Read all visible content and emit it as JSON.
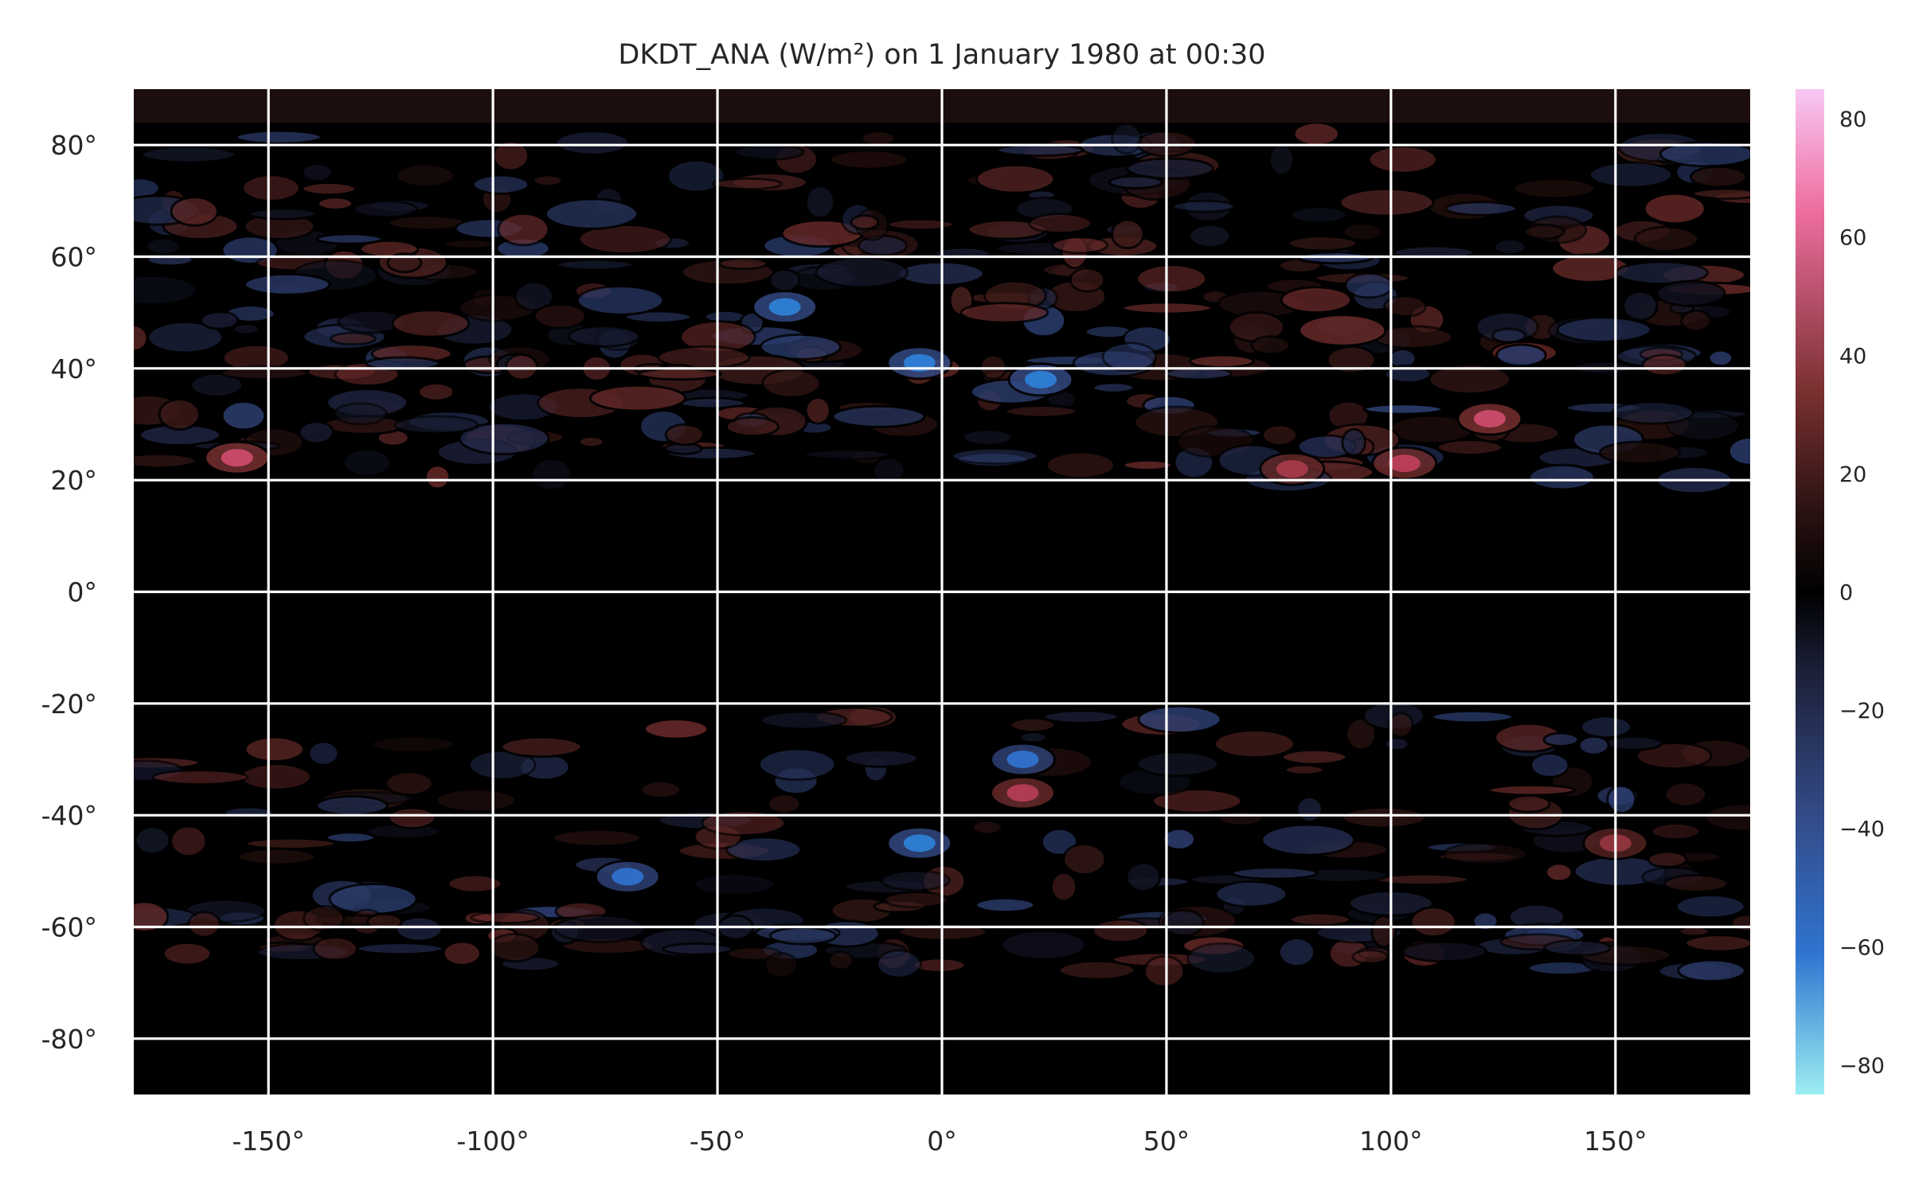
{
  "chart_data": {
    "type": "heatmap",
    "title": "DKDT_ANA (W/m²) on 1 January 1980 at 00:30",
    "xlim": [
      -180,
      180
    ],
    "ylim": [
      -90,
      90
    ],
    "x_ticks": [
      -150,
      -100,
      -50,
      0,
      50,
      100,
      150
    ],
    "y_ticks": [
      80,
      60,
      40,
      20,
      0,
      -20,
      -40,
      -60,
      -80
    ],
    "x_tick_labels": [
      "-150°",
      "-100°",
      "-50°",
      "0°",
      "50°",
      "100°",
      "150°"
    ],
    "y_tick_labels": [
      "80°",
      "60°",
      "40°",
      "20°",
      "0°",
      "-20°",
      "-40°",
      "-60°",
      "-80°"
    ],
    "grid": true,
    "colorbar": {
      "range": [
        -85,
        85
      ],
      "ticks": [
        80,
        60,
        40,
        20,
        0,
        -20,
        -40,
        -60,
        -80
      ],
      "tick_labels": [
        "80",
        "60",
        "40",
        "20",
        "0",
        "−20",
        "−40",
        "−60",
        "−80"
      ],
      "placement": "right"
    },
    "colormap": {
      "zero": "#000000",
      "positive": [
        "#000000",
        "#3a1a18",
        "#7a3030",
        "#c0405a",
        "#ee6ea0",
        "#f8c8f4"
      ],
      "negative": [
        "#000000",
        "#1c2038",
        "#334a86",
        "#2f74d0",
        "#29a6e8",
        "#9ceef2"
      ]
    },
    "notable_features": [
      {
        "lon": -157,
        "lat": 24,
        "value": 55
      },
      {
        "lon": -35,
        "lat": 51,
        "value": -55
      },
      {
        "lon": -5,
        "lat": 41,
        "value": -55
      },
      {
        "lon": 22,
        "lat": 38,
        "value": -55
      },
      {
        "lon": 18,
        "lat": -30,
        "value": -50
      },
      {
        "lon": -5,
        "lat": -45,
        "value": -55
      },
      {
        "lon": -70,
        "lat": -51,
        "value": -50
      },
      {
        "lon": 122,
        "lat": 31,
        "value": 55
      },
      {
        "lon": 103,
        "lat": 23,
        "value": 50
      },
      {
        "lon": 78,
        "lat": 22,
        "value": 45
      },
      {
        "lon": 18,
        "lat": -36,
        "value": 48
      },
      {
        "lon": 150,
        "lat": -45,
        "value": 40
      }
    ]
  }
}
